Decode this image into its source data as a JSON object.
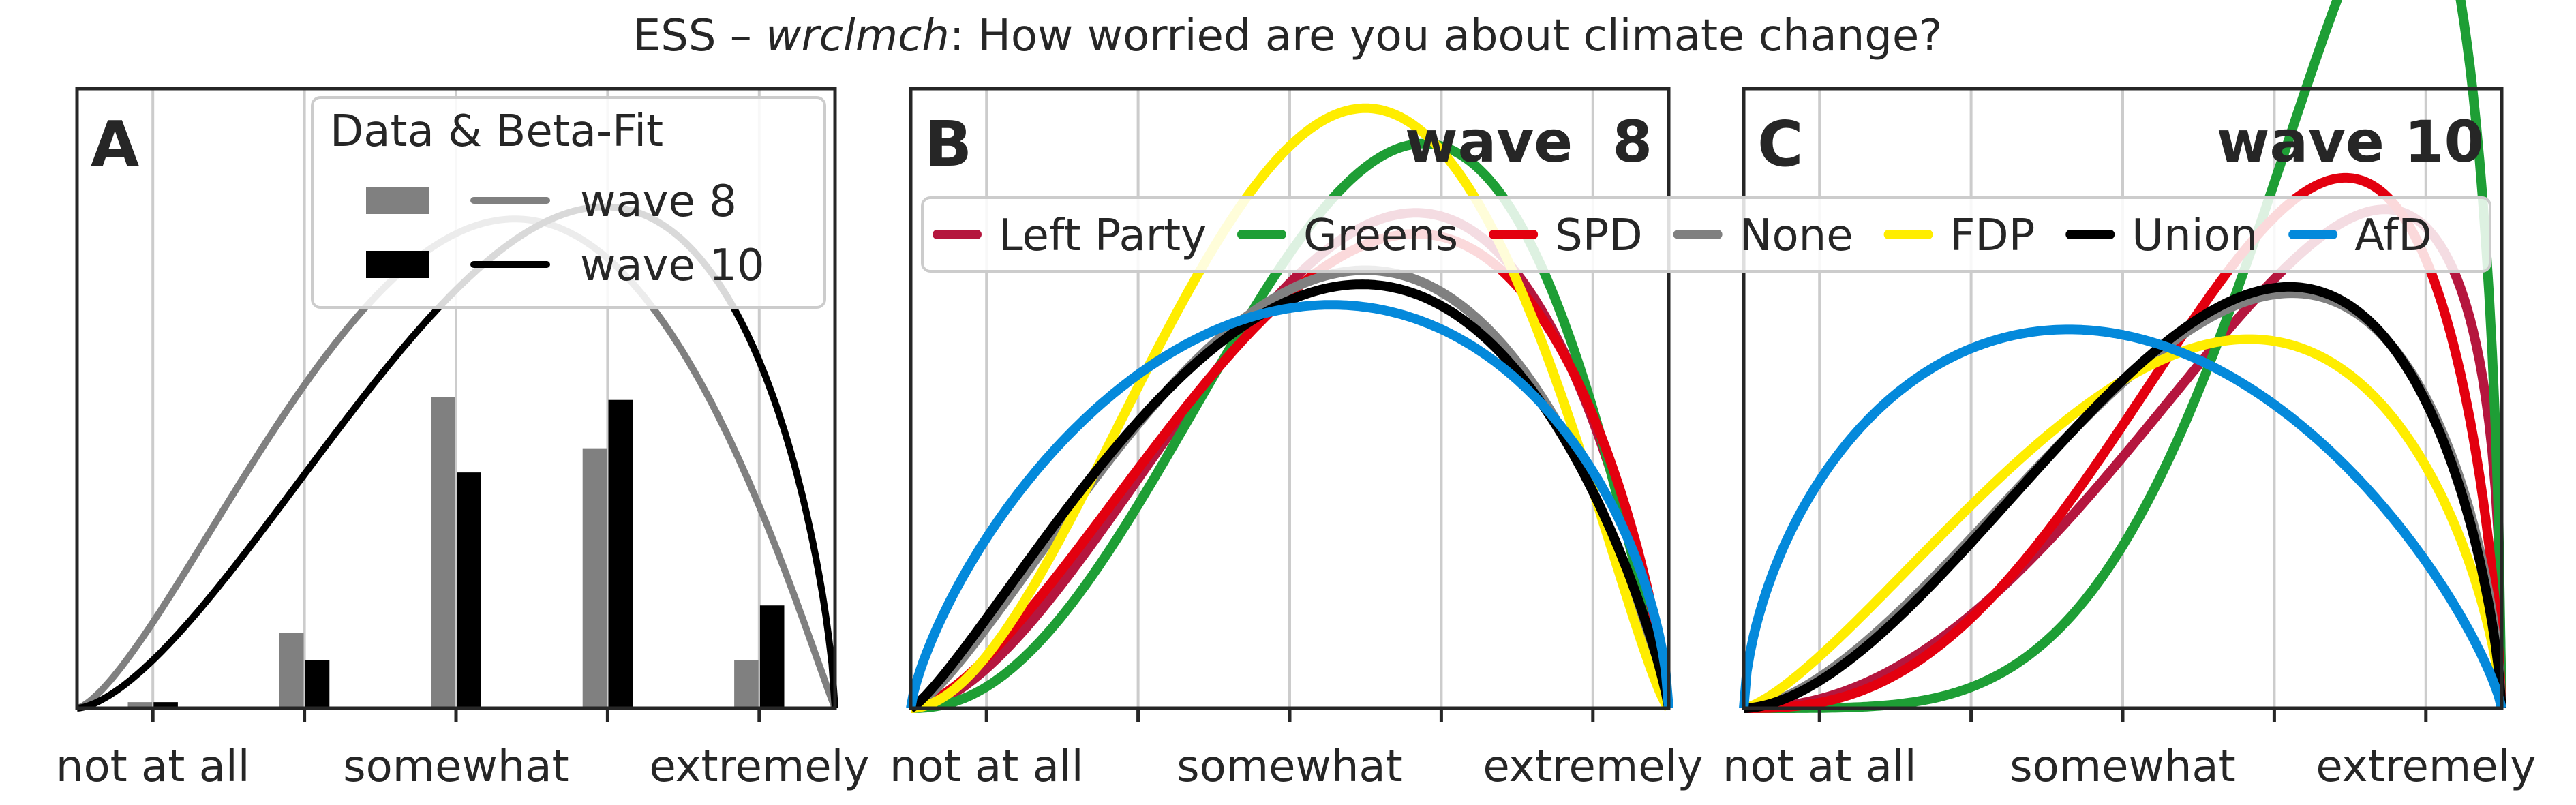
{
  "figure": {
    "title_prefix": "ESS – ",
    "title_var": "wrclmch",
    "title_suffix": ": How worried are you about climate change?"
  },
  "x_tick_labels": [
    "not at all",
    "somewhat",
    "extremely"
  ],
  "colors": {
    "wave8": "#808080",
    "wave10": "#000000",
    "Left Party": "#b5163e",
    "Greens": "#1e9e35",
    "SPD": "#e3000f",
    "None": "#808080",
    "FDP": "#ffed00",
    "Union": "#000000",
    "AfD": "#0489db"
  },
  "chart_data": [
    {
      "type": "bar",
      "panel_letter": "A",
      "legend_title": "Data & Beta-Fit",
      "legend_position": "top-right",
      "grid": "vertical",
      "categories": [
        1,
        2,
        3,
        4,
        5
      ],
      "series": [
        {
          "name": "wave 8",
          "values": [
            0.02,
            0.25,
            1.03,
            0.86,
            0.16
          ],
          "fit": {
            "alpha": 2.45,
            "beta": 2.06
          }
        },
        {
          "name": "wave 10",
          "values": [
            0.02,
            0.16,
            0.78,
            1.02,
            0.34
          ],
          "fit": {
            "alpha": 2.6,
            "beta": 1.7
          }
        }
      ],
      "xlim": [
        0.5,
        5.5
      ],
      "ylim": [
        0,
        2.05
      ]
    },
    {
      "type": "line",
      "panel_letter": "B",
      "panel_title": "wave  8",
      "legend_position": "top",
      "grid": "vertical",
      "series": [
        {
          "name": "Left Party",
          "alpha": 2.8,
          "beta": 1.9,
          "scale": 0.955
        },
        {
          "name": "Greens",
          "alpha": 3.3,
          "beta": 2.1,
          "scale": 1.0
        },
        {
          "name": "SPD",
          "alpha": 2.6,
          "beta": 1.8,
          "scale": 0.95
        },
        {
          "name": "None",
          "alpha": 2.35,
          "beta": 1.9,
          "scale": 0.92
        },
        {
          "name": "FDP",
          "alpha": 2.95,
          "beta": 2.3,
          "scale": 1.12
        },
        {
          "name": "Union",
          "alpha": 2.25,
          "beta": 1.85,
          "scale": 0.91
        },
        {
          "name": "AfD",
          "alpha": 1.75,
          "beta": 1.6,
          "scale": 0.98
        }
      ],
      "xlim": [
        0.5,
        5.5
      ],
      "ylim": [
        0,
        2.05
      ]
    },
    {
      "type": "line",
      "panel_letter": "C",
      "panel_title": "wave 10",
      "legend_position": "top",
      "grid": "vertical",
      "series": [
        {
          "name": "Left Party",
          "alpha": 3.2,
          "beta": 1.4,
          "scale": 0.81
        },
        {
          "name": "Greens",
          "alpha": 5.4,
          "beta": 1.6,
          "scale": 0.952
        },
        {
          "name": "SPD",
          "alpha": 3.7,
          "beta": 1.7,
          "scale": 0.84
        },
        {
          "name": "None",
          "alpha": 2.7,
          "beta": 1.65,
          "scale": 0.806
        },
        {
          "name": "FDP",
          "alpha": 2.4,
          "beta": 1.7,
          "scale": 0.77
        },
        {
          "name": "Union",
          "alpha": 2.8,
          "beta": 1.7,
          "scale": 0.804
        },
        {
          "name": "AfD",
          "alpha": 1.6,
          "beta": 1.8,
          "scale": 0.91
        }
      ],
      "xlim": [
        0.5,
        5.5
      ],
      "ylim": [
        0,
        2.05
      ]
    }
  ]
}
